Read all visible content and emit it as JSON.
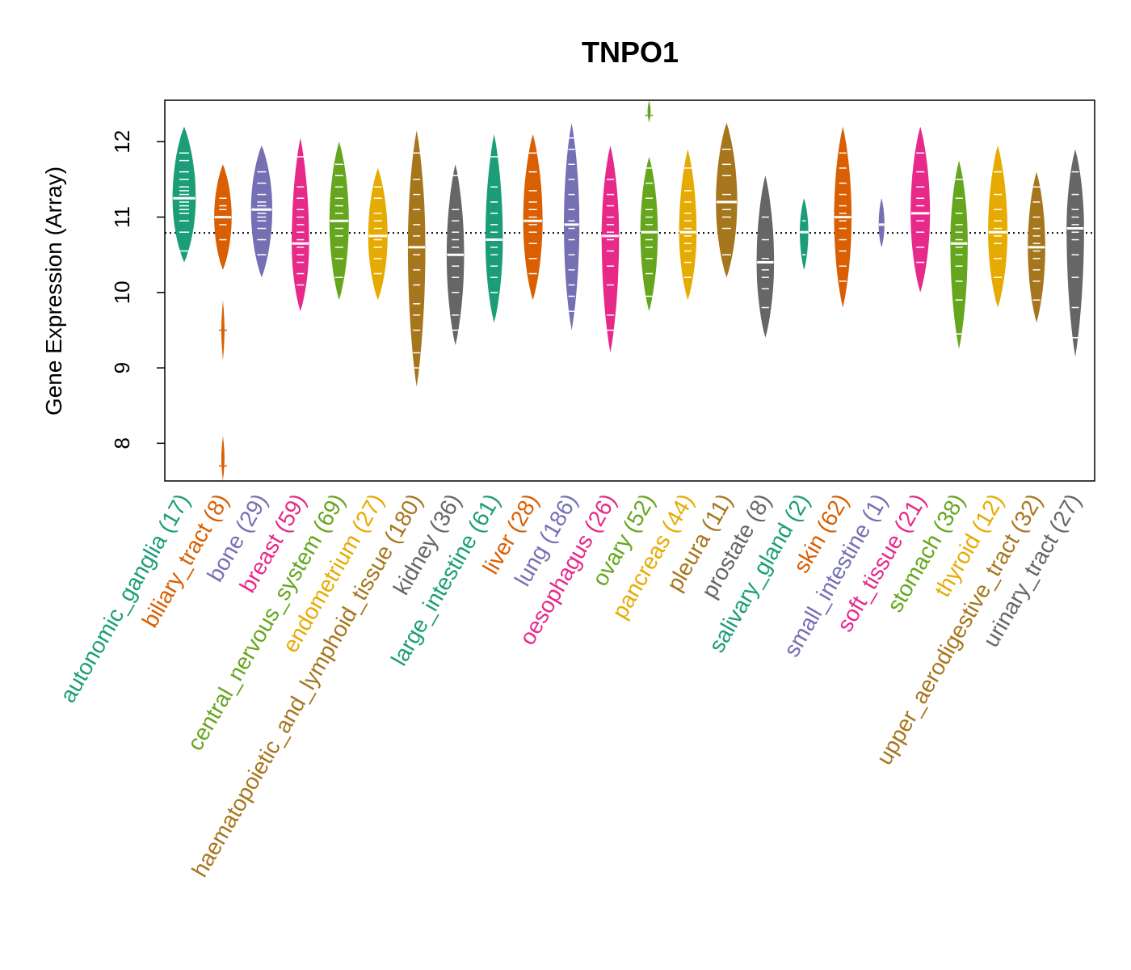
{
  "chart_data": {
    "type": "beanplot",
    "title": "TNPO1",
    "ylabel": "Gene Expression (Array)",
    "xlabel": "",
    "ylim": [
      7.5,
      12.55
    ],
    "yticks": [
      "8",
      "9",
      "10",
      "11",
      "12"
    ],
    "reference_line": 10.79,
    "grid": false,
    "groups": [
      {
        "label": "autonomic_ganglia (17)",
        "color": "#1B9E77",
        "min": 10.4,
        "max": 12.2,
        "median": 11.25,
        "width": 0.6,
        "points": [
          10.55,
          10.8,
          10.95,
          11.05,
          11.1,
          11.15,
          11.2,
          11.25,
          11.3,
          11.35,
          11.4,
          11.5,
          11.6,
          11.75,
          11.85
        ]
      },
      {
        "label": "biliary_tract (8)",
        "color": "#D95F02",
        "min": 10.3,
        "max": 11.7,
        "median": 11.0,
        "width": 0.45,
        "points": [
          9.5,
          7.7,
          10.7,
          10.9,
          11.0,
          11.1,
          11.15,
          11.25
        ],
        "tails": [
          [
            9.1,
            9.9
          ],
          [
            7.5,
            8.1
          ]
        ]
      },
      {
        "label": "bone (29)",
        "color": "#7570B3",
        "min": 10.2,
        "max": 11.95,
        "median": 11.1,
        "width": 0.55,
        "points": [
          10.5,
          10.7,
          10.85,
          10.95,
          11.0,
          11.05,
          11.1,
          11.15,
          11.2,
          11.3,
          11.45,
          11.6
        ]
      },
      {
        "label": "breast (59)",
        "color": "#E7298A",
        "min": 9.75,
        "max": 12.05,
        "median": 10.65,
        "width": 0.45,
        "points": [
          10.1,
          10.25,
          10.4,
          10.5,
          10.6,
          10.65,
          10.7,
          10.8,
          10.9,
          11.0,
          11.1,
          11.25,
          11.4,
          11.8
        ]
      },
      {
        "label": "central_nervous_system (69)",
        "color": "#66A61E",
        "min": 9.9,
        "max": 12.0,
        "median": 10.95,
        "width": 0.5,
        "points": [
          10.2,
          10.45,
          10.6,
          10.75,
          10.85,
          10.95,
          11.05,
          11.15,
          11.25,
          11.4,
          11.55,
          11.7
        ]
      },
      {
        "label": "endometrium (27)",
        "color": "#E6AB02",
        "min": 9.9,
        "max": 11.65,
        "median": 10.75,
        "width": 0.5,
        "points": [
          10.25,
          10.45,
          10.6,
          10.7,
          10.75,
          10.85,
          10.95,
          11.05,
          11.25,
          11.4
        ]
      },
      {
        "label": "haematopoietic_and_lymphoid_tissue (180)",
        "color": "#A6761D",
        "min": 8.75,
        "max": 12.15,
        "median": 10.6,
        "width": 0.45,
        "points": [
          9.0,
          9.2,
          9.5,
          9.7,
          9.85,
          10.1,
          10.3,
          10.5,
          10.6,
          10.75,
          10.9,
          11.1,
          11.3,
          11.5,
          11.85
        ]
      },
      {
        "label": "kidney (36)",
        "color": "#666666",
        "min": 9.3,
        "max": 11.7,
        "median": 10.5,
        "width": 0.45,
        "points": [
          9.5,
          9.7,
          10.0,
          10.2,
          10.35,
          10.5,
          10.6,
          10.7,
          10.8,
          10.95,
          11.1,
          11.55
        ]
      },
      {
        "label": "large_intestine (61)",
        "color": "#1B9E77",
        "min": 9.6,
        "max": 12.1,
        "median": 10.7,
        "width": 0.45,
        "points": [
          10.0,
          10.2,
          10.35,
          10.5,
          10.6,
          10.7,
          10.8,
          10.9,
          11.05,
          11.2,
          11.4,
          11.8
        ]
      },
      {
        "label": "liver (28)",
        "color": "#D95F02",
        "min": 9.9,
        "max": 12.1,
        "median": 10.95,
        "width": 0.5,
        "points": [
          10.25,
          10.45,
          10.65,
          10.8,
          10.9,
          11.0,
          11.1,
          11.2,
          11.35,
          11.6,
          11.85
        ]
      },
      {
        "label": "lung (186)",
        "color": "#7570B3",
        "min": 9.5,
        "max": 12.25,
        "median": 10.9,
        "width": 0.4,
        "points": [
          9.75,
          9.95,
          10.1,
          10.3,
          10.5,
          10.7,
          10.85,
          10.95,
          11.1,
          11.3,
          11.5,
          11.7,
          11.9,
          12.05
        ]
      },
      {
        "label": "oesophagus (26)",
        "color": "#E7298A",
        "min": 9.2,
        "max": 11.95,
        "median": 10.75,
        "width": 0.45,
        "points": [
          9.5,
          9.7,
          10.1,
          10.35,
          10.55,
          10.7,
          10.8,
          10.9,
          11.0,
          11.15,
          11.3,
          11.5
        ]
      },
      {
        "label": "ovary (52)",
        "color": "#66A61E",
        "min": 9.75,
        "max": 11.8,
        "median": 10.8,
        "width": 0.45,
        "points": [
          9.95,
          10.25,
          10.45,
          10.6,
          10.7,
          10.8,
          10.9,
          11.0,
          11.1,
          11.25,
          11.45,
          11.65,
          12.35
        ],
        "tails": [
          [
            12.25,
            12.55
          ]
        ]
      },
      {
        "label": "pancreas (44)",
        "color": "#E6AB02",
        "min": 9.9,
        "max": 11.9,
        "median": 10.8,
        "width": 0.45,
        "points": [
          10.2,
          10.4,
          10.55,
          10.65,
          10.75,
          10.85,
          10.95,
          11.05,
          11.2,
          11.35,
          11.65
        ]
      },
      {
        "label": "pleura (11)",
        "color": "#A6761D",
        "min": 10.2,
        "max": 12.25,
        "median": 11.2,
        "width": 0.55,
        "points": [
          10.5,
          10.85,
          11.0,
          11.1,
          11.2,
          11.3,
          11.55,
          11.7,
          11.9
        ]
      },
      {
        "label": "prostate (8)",
        "color": "#666666",
        "min": 9.4,
        "max": 11.55,
        "median": 10.4,
        "width": 0.45,
        "points": [
          9.8,
          10.05,
          10.2,
          10.3,
          10.45,
          10.7,
          11.0
        ]
      },
      {
        "label": "salivary_gland (2)",
        "color": "#1B9E77",
        "min": 10.3,
        "max": 11.25,
        "median": 10.8,
        "width": 0.22,
        "points": [
          10.5,
          10.95
        ]
      },
      {
        "label": "skin (62)",
        "color": "#D95F02",
        "min": 9.8,
        "max": 12.2,
        "median": 11.0,
        "width": 0.45,
        "points": [
          10.15,
          10.35,
          10.55,
          10.7,
          10.85,
          10.95,
          11.05,
          11.15,
          11.3,
          11.45,
          11.65,
          11.85
        ]
      },
      {
        "label": "small_intestine (1)",
        "color": "#7570B3",
        "min": 10.6,
        "max": 11.25,
        "median": 10.9,
        "width": 0.15,
        "points": [
          10.9
        ]
      },
      {
        "label": "soft_tissue (21)",
        "color": "#E7298A",
        "min": 10.0,
        "max": 12.2,
        "median": 11.05,
        "width": 0.5,
        "points": [
          10.4,
          10.6,
          10.8,
          10.95,
          11.05,
          11.15,
          11.25,
          11.4,
          11.6,
          11.85
        ]
      },
      {
        "label": "stomach (38)",
        "color": "#66A61E",
        "min": 9.25,
        "max": 11.75,
        "median": 10.65,
        "width": 0.45,
        "points": [
          9.45,
          9.9,
          10.15,
          10.35,
          10.5,
          10.6,
          10.7,
          10.8,
          10.9,
          11.05,
          11.25,
          11.5
        ]
      },
      {
        "label": "thyroid (12)",
        "color": "#E6AB02",
        "min": 9.8,
        "max": 11.95,
        "median": 10.8,
        "width": 0.5,
        "points": [
          10.2,
          10.45,
          10.65,
          10.75,
          10.85,
          10.95,
          11.1,
          11.3,
          11.6
        ]
      },
      {
        "label": "upper_aerodigestive_tract (32)",
        "color": "#A6761D",
        "min": 9.6,
        "max": 11.6,
        "median": 10.6,
        "width": 0.45,
        "points": [
          9.9,
          10.15,
          10.3,
          10.45,
          10.55,
          10.65,
          10.75,
          10.85,
          11.0,
          11.2,
          11.4
        ]
      },
      {
        "label": "urinary_tract (27)",
        "color": "#666666",
        "min": 9.15,
        "max": 11.9,
        "median": 10.85,
        "width": 0.45,
        "points": [
          9.4,
          9.8,
          10.2,
          10.5,
          10.7,
          10.8,
          10.9,
          11.0,
          11.1,
          11.3,
          11.6
        ]
      }
    ]
  }
}
